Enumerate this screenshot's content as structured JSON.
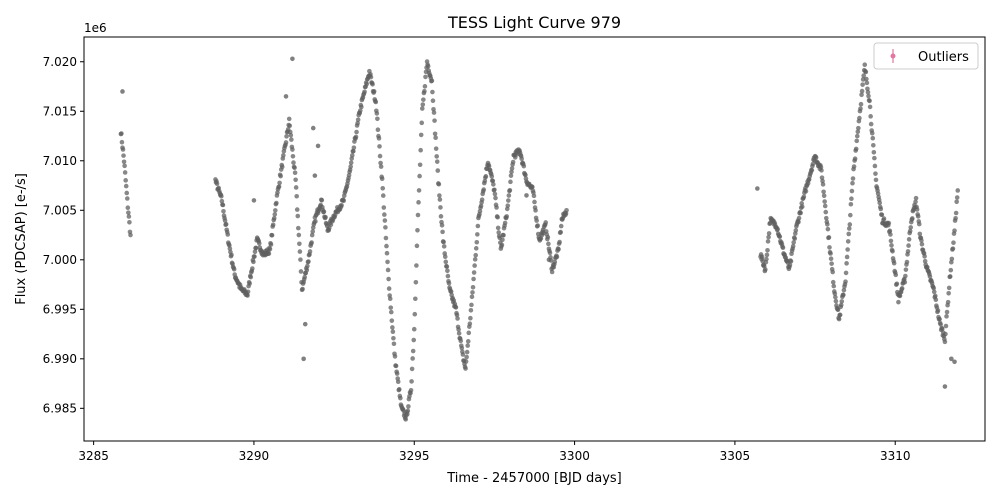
{
  "chart_data": {
    "type": "scatter",
    "title": "TESS Light Curve 979",
    "xlabel": "Time - 2457000 [BJD days]",
    "ylabel": "Flux (PDCSAP) [e-/s]",
    "offset_text": "1e6",
    "xlim": [
      3284.7,
      3312.8
    ],
    "ylim": [
      6981700,
      7022500
    ],
    "x_ticks": [
      3285,
      3290,
      3295,
      3300,
      3305,
      3310
    ],
    "y_ticks": [
      6985000,
      6990000,
      6995000,
      7000000,
      7005000,
      7010000,
      7015000,
      7020000
    ],
    "y_tick_labels": [
      "6.985",
      "6.990",
      "6.995",
      "7.000",
      "7.005",
      "7.010",
      "7.015",
      "7.020"
    ],
    "grid": false,
    "legend": {
      "position": "top-right",
      "entries": [
        "Outliers"
      ]
    },
    "colors": {
      "data": "#606060",
      "outliers": "#e377a0"
    },
    "series": [
      {
        "points": [
          [
            3285.85,
            7013.0
          ],
          [
            3285.95,
            7010.0
          ],
          [
            3286.05,
            7006.0
          ],
          [
            3286.15,
            7002.5
          ],
          [
            3288.8,
            7008.0
          ],
          [
            3289.0,
            7006.0
          ],
          [
            3289.2,
            7002.0
          ],
          [
            3289.4,
            6998.5
          ],
          [
            3289.6,
            6997.0
          ],
          [
            3289.8,
            6996.5
          ],
          [
            3289.9,
            6998.5
          ],
          [
            3290.1,
            7002.0
          ],
          [
            3290.3,
            7000.5
          ],
          [
            3290.5,
            7001.0
          ],
          [
            3290.7,
            7006.0
          ],
          [
            3290.9,
            7010.0
          ],
          [
            3291.1,
            7014.0
          ],
          [
            3291.3,
            7008.0
          ],
          [
            3291.5,
            6997.0
          ],
          [
            3291.7,
            7000.0
          ],
          [
            3291.9,
            7004.0
          ],
          [
            3292.1,
            7006.0
          ],
          [
            3292.3,
            7003.0
          ],
          [
            3292.5,
            7004.5
          ],
          [
            3292.8,
            7006.0
          ],
          [
            3293.0,
            7009.0
          ],
          [
            3293.3,
            7015.0
          ],
          [
            3293.6,
            7019.0
          ],
          [
            3293.8,
            7016.0
          ],
          [
            3294.0,
            7008.0
          ],
          [
            3294.2,
            6998.0
          ],
          [
            3294.4,
            6990.0
          ],
          [
            3294.6,
            6985.0
          ],
          [
            3294.75,
            6984.0
          ],
          [
            3294.9,
            6987.0
          ],
          [
            3295.0,
            6993.0
          ],
          [
            3295.1,
            7003.0
          ],
          [
            3295.25,
            7015.0
          ],
          [
            3295.4,
            7020.0
          ],
          [
            3295.55,
            7018.0
          ],
          [
            3295.75,
            7008.0
          ],
          [
            3295.9,
            7002.0
          ],
          [
            3296.1,
            6997.0
          ],
          [
            3296.3,
            6995.0
          ],
          [
            3296.5,
            6990.5
          ],
          [
            3296.6,
            6989.0
          ],
          [
            3296.8,
            6996.0
          ],
          [
            3297.0,
            7004.0
          ],
          [
            3297.3,
            7010.0
          ],
          [
            3297.5,
            7007.0
          ],
          [
            3297.7,
            7001.0
          ],
          [
            3297.9,
            7005.0
          ],
          [
            3298.1,
            7010.5
          ],
          [
            3298.3,
            7011.0
          ],
          [
            3298.5,
            7008.0
          ],
          [
            3298.7,
            7007.0
          ],
          [
            3298.9,
            7002.0
          ],
          [
            3299.1,
            7003.5
          ],
          [
            3299.3,
            6999.0
          ],
          [
            3299.5,
            7001.0
          ],
          [
            3299.6,
            7004.0
          ],
          [
            3299.75,
            7005.0
          ],
          [
            3305.8,
            7000.5
          ],
          [
            3305.95,
            6999.0
          ],
          [
            3306.1,
            7004.0
          ],
          [
            3306.3,
            7003.5
          ],
          [
            3306.5,
            7001.0
          ],
          [
            3306.7,
            6999.0
          ],
          [
            3306.9,
            7003.0
          ],
          [
            3307.2,
            7007.0
          ],
          [
            3307.5,
            7010.5
          ],
          [
            3307.7,
            7009.0
          ],
          [
            3307.9,
            7003.0
          ],
          [
            3308.1,
            6997.0
          ],
          [
            3308.25,
            6994.0
          ],
          [
            3308.45,
            6998.0
          ],
          [
            3308.7,
            7009.0
          ],
          [
            3308.9,
            7015.0
          ],
          [
            3309.05,
            7019.5
          ],
          [
            3309.2,
            7016.0
          ],
          [
            3309.4,
            7008.0
          ],
          [
            3309.6,
            7004.0
          ],
          [
            3309.8,
            7003.5
          ],
          [
            3309.95,
            7000.0
          ],
          [
            3310.1,
            6996.0
          ],
          [
            3310.3,
            6998.0
          ],
          [
            3310.5,
            7004.0
          ],
          [
            3310.65,
            7006.0
          ],
          [
            3310.8,
            7002.0
          ],
          [
            3311.0,
            6999.0
          ],
          [
            3311.2,
            6997.0
          ],
          [
            3311.4,
            6993.5
          ],
          [
            3311.55,
            6992.0
          ],
          [
            3311.7,
            6998.0
          ],
          [
            3311.85,
            7003.0
          ],
          [
            3311.95,
            7007.0
          ]
        ]
      },
      {
        "name": "Outliers",
        "points": [
          [
            3285.9,
            7017.0
          ],
          [
            3291.0,
            7016.5
          ],
          [
            3291.2,
            7020.3
          ],
          [
            3291.55,
            6990.0
          ],
          [
            3291.6,
            6993.5
          ],
          [
            3291.85,
            7013.3
          ],
          [
            3291.9,
            7008.5
          ],
          [
            3292.0,
            7011.5
          ],
          [
            3290.0,
            7006.0
          ],
          [
            3311.55,
            6987.2
          ],
          [
            3311.85,
            6989.7
          ],
          [
            3311.75,
            6990.0
          ],
          [
            3305.7,
            7007.2
          ],
          [
            3298.5,
            7006.5
          ],
          [
            3299.2,
            7000.0
          ]
        ]
      }
    ]
  }
}
